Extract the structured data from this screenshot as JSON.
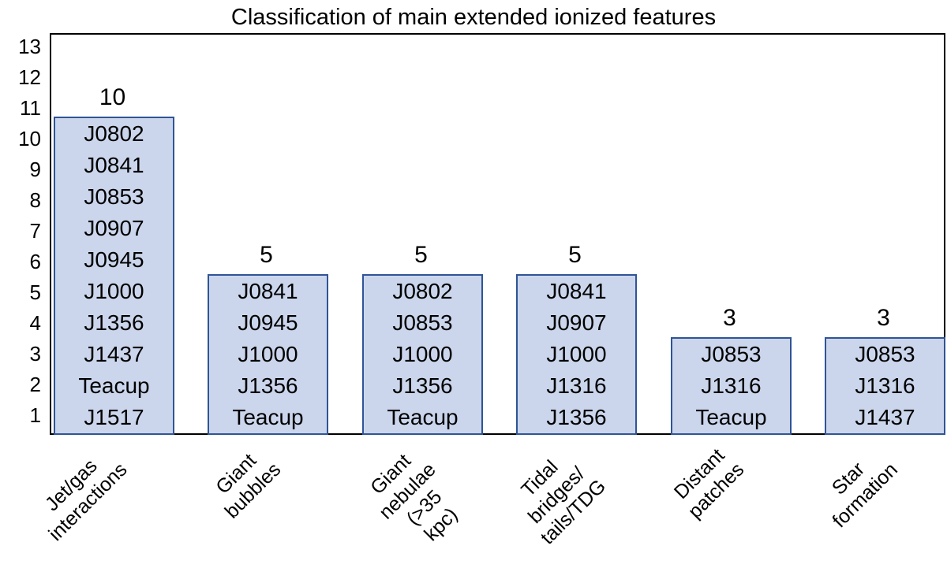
{
  "chart_data": {
    "type": "bar",
    "title": "Classification of main extended ionized features",
    "categories": [
      "Jet/gas\ninteractions",
      "Giant bubbles",
      "Giant nebulae\n(>35 kpc)",
      "Tidal bridges/\ntails/TDG",
      "Distant patches",
      "Star formation"
    ],
    "values": [
      10,
      5,
      5,
      5,
      3,
      3
    ],
    "bar_members": [
      [
        "J0802",
        "J0841",
        "J0853",
        "J0907",
        "J0945",
        "J1000",
        "J1356",
        "J1437",
        "Teacup",
        "J1517"
      ],
      [
        "J0841",
        "J0945",
        "J1000",
        "J1356",
        "Teacup"
      ],
      [
        "J0802",
        "J0853",
        "J1000",
        "J1356",
        "Teacup"
      ],
      [
        "J0841",
        "J0907",
        "J1000",
        "J1316",
        "J1356"
      ],
      [
        "J0853",
        "J1316",
        "Teacup"
      ],
      [
        "J0853",
        "J1316",
        "J1437"
      ]
    ],
    "value_labels": [
      "10",
      "5",
      "5",
      "5",
      "3",
      "3"
    ],
    "yticks": [
      "1",
      "2",
      "3",
      "4",
      "5",
      "6",
      "7",
      "8",
      "9",
      "10",
      "11",
      "12",
      "13"
    ],
    "ylim": [
      0,
      13
    ],
    "xlabel": "",
    "ylabel": "",
    "grid": false,
    "legend": false,
    "colors": {
      "bar_fill": "#CBD6EC",
      "bar_border": "#2F5496",
      "axis": "#000000",
      "text": "#000000"
    }
  }
}
